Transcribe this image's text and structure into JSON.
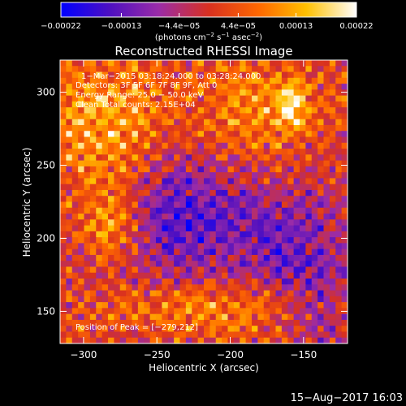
{
  "chart_data": {
    "type": "heatmap",
    "title": "Reconstructed RHESSI Image",
    "xlabel": "Heliocentric X (arcsec)",
    "ylabel": "Heliocentric Y (arcsec)",
    "xlim": [
      -316,
      -120
    ],
    "ylim": [
      128,
      322
    ],
    "x_ticks": [
      {
        "value": -300,
        "label": "−300"
      },
      {
        "value": -250,
        "label": "−250"
      },
      {
        "value": -200,
        "label": "−200"
      },
      {
        "value": -150,
        "label": "−150"
      }
    ],
    "y_ticks": [
      {
        "value": 150,
        "label": "150"
      },
      {
        "value": 200,
        "label": "200"
      },
      {
        "value": 250,
        "label": "250"
      },
      {
        "value": 300,
        "label": "300"
      }
    ],
    "colorbar": {
      "min": -0.00022,
      "max": 0.00022,
      "ticks": [
        {
          "value": -0.00022,
          "label": "−0.00022"
        },
        {
          "value": -0.00013,
          "label": "−0.00013"
        },
        {
          "value": -4.4e-05,
          "label": "−4.4e−05"
        },
        {
          "value": 4.4e-05,
          "label": "4.4e−05"
        },
        {
          "value": 0.00013,
          "label": "0.00013"
        },
        {
          "value": 0.00022,
          "label": "0.00022"
        }
      ],
      "unit_parts": [
        "(photons cm",
        "−2",
        " s",
        "−1",
        " asec",
        "−2",
        ")"
      ],
      "colors": [
        "#0000ff",
        "#5010c0",
        "#9a2ca8",
        "#d83020",
        "#ff6800",
        "#ffc000",
        "#ffffff"
      ]
    },
    "annotations": [
      "1−Mar−2015 03:18:24.000 to 03:28:24.000",
      "Detectors: 3F 5F 6F 7F 8F 9F, Att 0",
      "Energy Range: 25.0 − 50.0 keV",
      "Clean    Total counts: 2.15E+04"
    ],
    "peak_label": "Position of Peak = [−279,212]",
    "peak": [
      -279,
      212
    ],
    "grid": false,
    "legend": "none"
  },
  "footer": {
    "timestamp": "15−Aug−2017 16:03"
  }
}
